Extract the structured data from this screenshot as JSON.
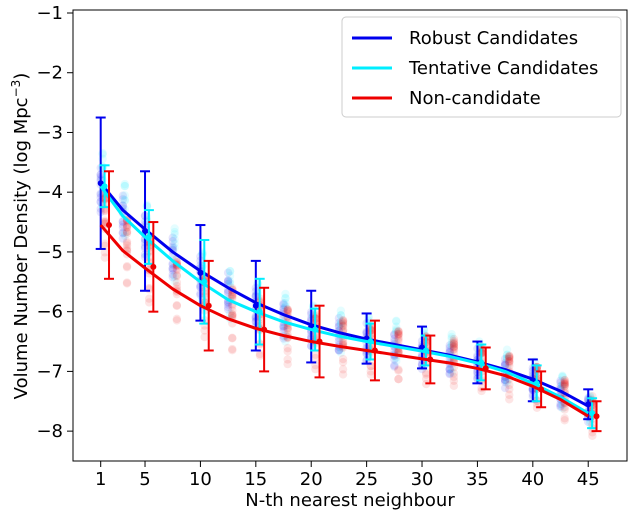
{
  "chart_data": {
    "type": "line",
    "xlabel": "N-th nearest neighbour",
    "ylabel": "Volume Number Density (log Mpc",
    "ylabel_sup": "−3",
    "ylabel_close": ")",
    "xlim": [
      -1.5,
      48.5
    ],
    "ylim": [
      -8.5,
      -0.95
    ],
    "xticks": [
      1,
      5,
      10,
      15,
      20,
      25,
      30,
      35,
      40,
      45
    ],
    "yticks": [
      -1,
      -2,
      -3,
      -4,
      -5,
      -6,
      -7,
      -8
    ],
    "ytick_labels": [
      "−1",
      "−2",
      "−3",
      "−4",
      "−5",
      "−6",
      "−7",
      "−8"
    ],
    "legend_position": "upper right",
    "series": [
      {
        "name": "Robust Candidates",
        "color": "#0000ee",
        "x_offset": 0,
        "x": [
          1,
          5,
          10,
          15,
          20,
          25,
          30,
          35,
          40,
          45
        ],
        "y": [
          -3.85,
          -4.65,
          -5.35,
          -5.9,
          -6.25,
          -6.45,
          -6.6,
          -6.85,
          -7.15,
          -7.55
        ],
        "err": [
          1.1,
          1.0,
          0.8,
          0.75,
          0.6,
          0.42,
          0.35,
          0.35,
          0.35,
          0.25
        ],
        "curve": [
          [
            1,
            -3.85
          ],
          [
            3,
            -4.3
          ],
          [
            5,
            -4.62
          ],
          [
            7.5,
            -5.0
          ],
          [
            10,
            -5.32
          ],
          [
            12.5,
            -5.6
          ],
          [
            15,
            -5.85
          ],
          [
            17.5,
            -6.05
          ],
          [
            20,
            -6.22
          ],
          [
            22.5,
            -6.35
          ],
          [
            25,
            -6.46
          ],
          [
            27.5,
            -6.55
          ],
          [
            30,
            -6.64
          ],
          [
            32.5,
            -6.73
          ],
          [
            35,
            -6.84
          ],
          [
            37.5,
            -6.97
          ],
          [
            40,
            -7.13
          ],
          [
            42.5,
            -7.33
          ],
          [
            45,
            -7.58
          ]
        ]
      },
      {
        "name": "Tentative Candidates",
        "color": "#00eeff",
        "x_offset": 0.35,
        "x": [
          1,
          5,
          10,
          15,
          20,
          25,
          30,
          35,
          40,
          45
        ],
        "y": [
          -3.9,
          -4.75,
          -5.5,
          -6.0,
          -6.3,
          -6.5,
          -6.65,
          -6.85,
          -7.2,
          -7.7
        ],
        "err": [
          0.35,
          0.45,
          0.7,
          0.55,
          0.35,
          0.3,
          0.25,
          0.3,
          0.3,
          0.25
        ],
        "curve": [
          [
            1,
            -3.9
          ],
          [
            3,
            -4.4
          ],
          [
            5,
            -4.75
          ],
          [
            7.5,
            -5.15
          ],
          [
            10,
            -5.5
          ],
          [
            12.5,
            -5.8
          ],
          [
            15,
            -6.0
          ],
          [
            17.5,
            -6.17
          ],
          [
            20,
            -6.3
          ],
          [
            22.5,
            -6.41
          ],
          [
            25,
            -6.5
          ],
          [
            27.5,
            -6.58
          ],
          [
            30,
            -6.66
          ],
          [
            32.5,
            -6.75
          ],
          [
            35,
            -6.86
          ],
          [
            37.5,
            -7.0
          ],
          [
            40,
            -7.2
          ],
          [
            42.5,
            -7.43
          ],
          [
            45,
            -7.7
          ]
        ]
      },
      {
        "name": "Non-candidate",
        "color": "#ee0000",
        "x_offset": 0.75,
        "x": [
          1,
          5,
          10,
          15,
          20,
          25,
          30,
          35,
          40,
          45
        ],
        "y": [
          -4.55,
          -5.25,
          -5.9,
          -6.3,
          -6.5,
          -6.65,
          -6.8,
          -6.95,
          -7.3,
          -7.75
        ],
        "err": [
          0.9,
          0.75,
          0.75,
          0.7,
          0.6,
          0.5,
          0.4,
          0.35,
          0.3,
          0.25
        ],
        "curve": [
          [
            1,
            -4.55
          ],
          [
            3,
            -4.98
          ],
          [
            5,
            -5.27
          ],
          [
            7.5,
            -5.62
          ],
          [
            10,
            -5.9
          ],
          [
            12.5,
            -6.12
          ],
          [
            15,
            -6.28
          ],
          [
            17.5,
            -6.4
          ],
          [
            20,
            -6.5
          ],
          [
            22.5,
            -6.58
          ],
          [
            25,
            -6.65
          ],
          [
            27.5,
            -6.72
          ],
          [
            30,
            -6.79
          ],
          [
            32.5,
            -6.86
          ],
          [
            35,
            -6.95
          ],
          [
            37.5,
            -7.07
          ],
          [
            40,
            -7.25
          ],
          [
            42.5,
            -7.47
          ],
          [
            45,
            -7.75
          ]
        ]
      }
    ]
  }
}
